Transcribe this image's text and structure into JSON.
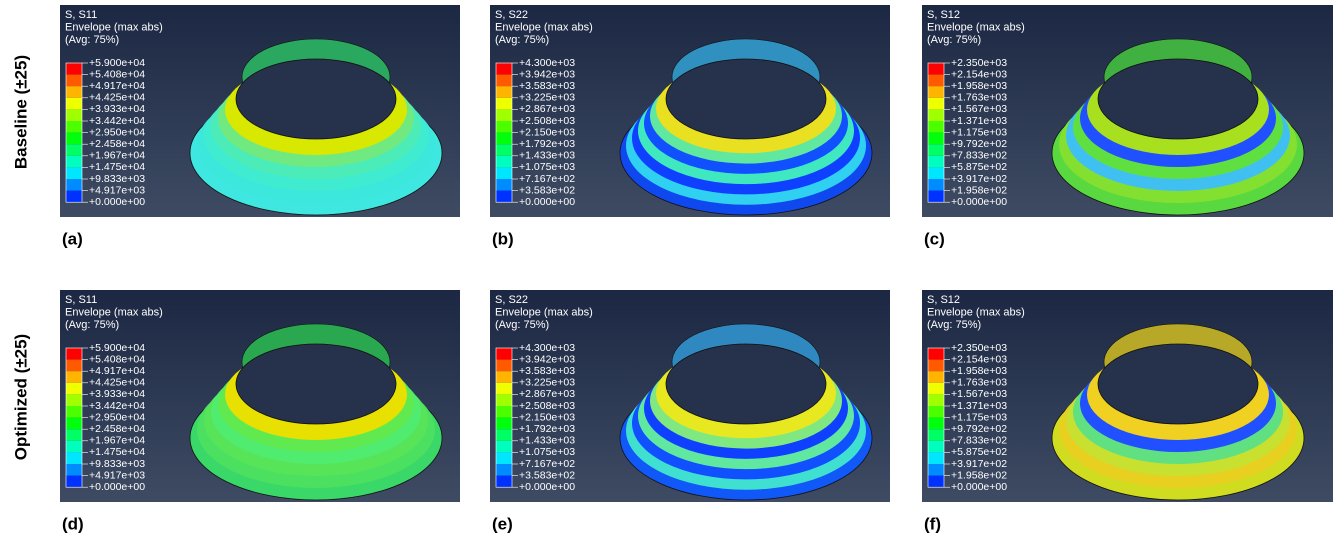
{
  "row_labels": [
    "Baseline (±25)",
    "Optimized (±25)"
  ],
  "panels": [
    {
      "label": "(a)",
      "header": [
        "S, S11",
        "Envelope (max abs)",
        "(Avg: 75%)"
      ],
      "legend": [
        "+5.900e+04",
        "+5.408e+04",
        "+4.917e+04",
        "+4.425e+04",
        "+3.933e+04",
        "+3.442e+04",
        "+2.950e+04",
        "+2.458e+04",
        "+1.967e+04",
        "+1.475e+04",
        "+9.833e+03",
        "+4.917e+03",
        "+0.000e+00"
      ]
    },
    {
      "label": "(b)",
      "header": [
        "S, S22",
        "Envelope (max abs)",
        "(Avg: 75%)"
      ],
      "legend": [
        "+4.300e+03",
        "+3.942e+03",
        "+3.583e+03",
        "+3.225e+03",
        "+2.867e+03",
        "+2.508e+03",
        "+2.150e+03",
        "+1.792e+03",
        "+1.433e+03",
        "+1.075e+03",
        "+7.167e+02",
        "+3.583e+02",
        "+0.000e+00"
      ]
    },
    {
      "label": "(c)",
      "header": [
        "S, S12",
        "Envelope (max abs)",
        "(Avg: 75%)"
      ],
      "legend": [
        "+2.350e+03",
        "+2.154e+03",
        "+1.958e+03",
        "+1.763e+03",
        "+1.567e+03",
        "+1.371e+03",
        "+1.175e+03",
        "+9.792e+02",
        "+7.833e+02",
        "+5.875e+02",
        "+3.917e+02",
        "+1.958e+02",
        "+0.000e+00"
      ]
    },
    {
      "label": "(d)",
      "header": [
        "S, S11",
        "Envelope (max abs)",
        "(Avg: 75%)"
      ],
      "legend": [
        "+5.900e+04",
        "+5.408e+04",
        "+4.917e+04",
        "+4.425e+04",
        "+3.933e+04",
        "+3.442e+04",
        "+2.950e+04",
        "+2.458e+04",
        "+1.967e+04",
        "+1.475e+04",
        "+9.833e+03",
        "+4.917e+03",
        "+0.000e+00"
      ]
    },
    {
      "label": "(e)",
      "header": [
        "S, S22",
        "Envelope (max abs)",
        "(Avg: 75%)"
      ],
      "legend": [
        "+4.300e+03",
        "+3.942e+03",
        "+3.583e+03",
        "+3.225e+03",
        "+2.867e+03",
        "+2.508e+03",
        "+2.150e+03",
        "+1.792e+03",
        "+1.433e+03",
        "+1.075e+03",
        "+7.167e+02",
        "+3.583e+02",
        "+0.000e+00"
      ]
    },
    {
      "label": "(f)",
      "header": [
        "S, S12",
        "Envelope (max abs)",
        "(Avg: 75%)"
      ],
      "legend": [
        "+2.350e+03",
        "+2.154e+03",
        "+1.958e+03",
        "+1.763e+03",
        "+1.567e+03",
        "+1.371e+03",
        "+1.175e+03",
        "+9.792e+02",
        "+7.833e+02",
        "+5.875e+02",
        "+3.917e+02",
        "+1.958e+02",
        "+0.000e+00"
      ]
    }
  ]
}
